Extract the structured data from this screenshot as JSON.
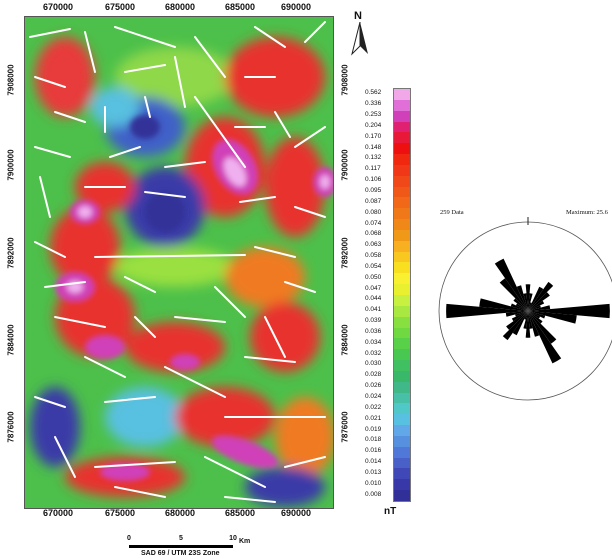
{
  "map": {
    "x_ticks": [
      "670000",
      "675000",
      "680000",
      "685000",
      "690000"
    ],
    "y_ticks": [
      "7908000",
      "7900000",
      "7892000",
      "7884000",
      "7876000"
    ]
  },
  "north_arrow": {
    "label": "N"
  },
  "legend": {
    "unit": "nT",
    "values": [
      "0.562",
      "0.336",
      "0.253",
      "0.204",
      "0.170",
      "0.148",
      "0.132",
      "0.117",
      "0.106",
      "0.095",
      "0.087",
      "0.080",
      "0.074",
      "0.068",
      "0.063",
      "0.058",
      "0.054",
      "0.050",
      "0.047",
      "0.044",
      "0.041",
      "0.039",
      "0.036",
      "0.034",
      "0.032",
      "0.030",
      "0.028",
      "0.026",
      "0.024",
      "0.022",
      "0.021",
      "0.019",
      "0.018",
      "0.016",
      "0.014",
      "0.013",
      "0.010",
      "0.008"
    ],
    "colors": [
      "#f0a8e8",
      "#e070d8",
      "#d040b8",
      "#e02070",
      "#e81838",
      "#ee1010",
      "#f02810",
      "#f03818",
      "#f04818",
      "#f05818",
      "#f06818",
      "#f07818",
      "#f08818",
      "#f09818",
      "#f8b020",
      "#f8c820",
      "#f8e020",
      "#f8f030",
      "#e8f030",
      "#c8f040",
      "#a8e840",
      "#88e040",
      "#70d840",
      "#58d048",
      "#48c850",
      "#40c060",
      "#38b868",
      "#40b888",
      "#48c0a8",
      "#50c8c8",
      "#58c0e0",
      "#60a8e8",
      "#5890e0",
      "#5078d8",
      "#4860c8",
      "#4048b8",
      "#3838a8",
      "#303098"
    ]
  },
  "rose": {
    "data_label": "259 Data",
    "max_label": "Maximum: 25.6",
    "petals": [
      {
        "az": 0,
        "len": 0.3
      },
      {
        "az": 10,
        "len": 0.2
      },
      {
        "az": 20,
        "len": 0.1
      },
      {
        "az": 30,
        "len": 0.3
      },
      {
        "az": 40,
        "len": 0.4
      },
      {
        "az": 50,
        "len": 0.3
      },
      {
        "az": 60,
        "len": 0.2
      },
      {
        "az": 70,
        "len": 0.15
      },
      {
        "az": 80,
        "len": 0.25
      },
      {
        "az": 90,
        "len": 0.92
      },
      {
        "az": 100,
        "len": 0.55
      },
      {
        "az": 110,
        "len": 0.2
      },
      {
        "az": 120,
        "len": 0.15
      },
      {
        "az": 130,
        "len": 0.2
      },
      {
        "az": 140,
        "len": 0.45
      },
      {
        "az": 150,
        "len": 0.65
      },
      {
        "az": 160,
        "len": 0.3
      },
      {
        "az": 170,
        "len": 0.2
      }
    ]
  },
  "scale_bar": {
    "ticks": [
      "0",
      "5",
      "10"
    ],
    "unit": "Km",
    "caption": "SAD 69 / UTM 23S Zone"
  }
}
